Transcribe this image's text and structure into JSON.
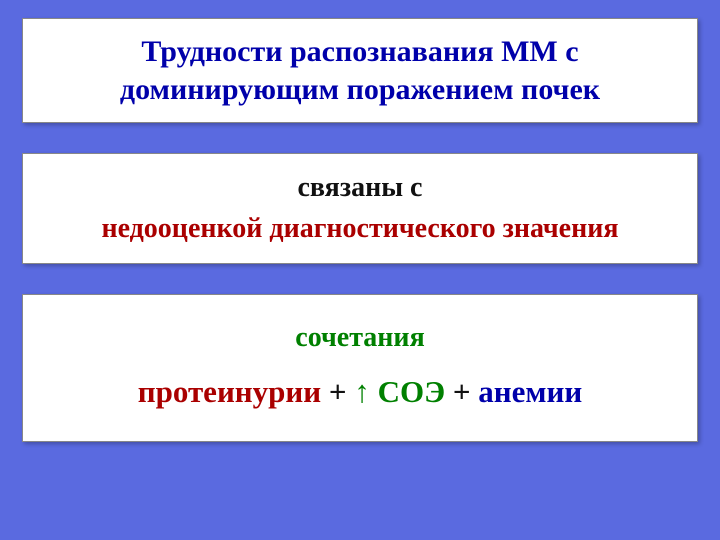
{
  "slide": {
    "background_color": "#5a6ae0",
    "title": "Трудности распознавания ММ с доминирующим поражением почек",
    "title_color": "#0000aa",
    "mid": {
      "line1": "связаны с",
      "line1_color": "#111111",
      "line2": "недооценкой диагностического значения",
      "line2_color": "#aa0000"
    },
    "bottom": {
      "line1": "сочетания",
      "line1_color": "#008000",
      "part1": "протеинурии",
      "part1_color": "#aa0000",
      "plus1": " + ",
      "arrow": "↑",
      "arrow_color": "#008000",
      "part2": " СОЭ",
      "part2_color": "#008000",
      "plus2": " + ",
      "part3": "анемии",
      "part3_color": "#0000aa"
    },
    "panel_bg": "#ffffff",
    "font_family": "Times New Roman"
  }
}
